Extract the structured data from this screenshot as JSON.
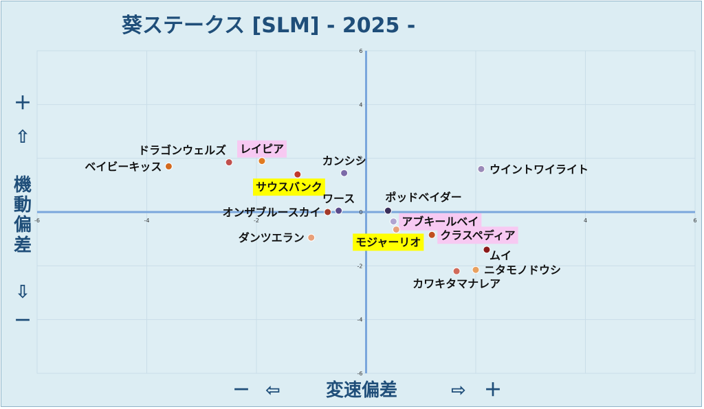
{
  "title": "葵ステークス [SLM]  - 2025 -",
  "y_axis_title": [
    "機",
    "動",
    "偏",
    "差"
  ],
  "y_plus": "＋",
  "y_up_arrow": "⇧",
  "y_down_arrow": "⇩",
  "y_minus": "－",
  "x_minus": "－",
  "x_left_arrow": "⇦",
  "x_axis_title": "変速偏差",
  "x_right_arrow": "⇨",
  "x_plus": "＋",
  "colors": {
    "background": "#dcedf3",
    "axis": "#7aa6dc",
    "title": "#1f4e79",
    "highlight_pink": "#f7c9f2",
    "highlight_yellow": "#ffff00"
  },
  "chart_data": {
    "type": "scatter",
    "title": "葵ステークス [SLM]  - 2025 -",
    "xlabel": "変速偏差",
    "ylabel": "機動偏差",
    "xlim": [
      -6,
      6
    ],
    "ylim": [
      -6,
      6
    ],
    "x_ticks": [
      "-6",
      "-4",
      "-2",
      "0",
      "2",
      "4",
      "6"
    ],
    "y_ticks": [
      "6",
      "4",
      "2",
      "0",
      "-2",
      "-4",
      "-6"
    ],
    "grid": true,
    "points": [
      {
        "name": "ベイビーキッス",
        "x": -3.6,
        "y": 1.7,
        "color": "#d2691e",
        "highlight": "none",
        "label_side": "left"
      },
      {
        "name": "ドラゴンウェルズ",
        "x": -2.5,
        "y": 1.85,
        "color": "#c0504d",
        "highlight": "none",
        "label_side": "above-left"
      },
      {
        "name": "レイピア",
        "x": -1.9,
        "y": 1.9,
        "color": "#e07b20",
        "highlight": "pink",
        "label_side": "above"
      },
      {
        "name": "サウスバンク",
        "x": -1.25,
        "y": 1.4,
        "color": "#c0392b",
        "highlight": "yellow",
        "label_side": "below-left"
      },
      {
        "name": "カンシシ",
        "x": -0.4,
        "y": 1.45,
        "color": "#7b6aa8",
        "highlight": "none",
        "label_side": "above"
      },
      {
        "name": "ワース",
        "x": -0.5,
        "y": 0.05,
        "color": "#5a4a8a",
        "highlight": "none",
        "label_side": "above"
      },
      {
        "name": "オンザブルースカイ",
        "x": -0.7,
        "y": 0.0,
        "color": "#a33a2a",
        "highlight": "none",
        "label_side": "left"
      },
      {
        "name": "ダンツエラン",
        "x": -1.0,
        "y": -0.95,
        "color": "#e8a07a",
        "highlight": "none",
        "label_side": "left"
      },
      {
        "name": "ポッドベイダー",
        "x": 0.4,
        "y": 0.05,
        "color": "#3a2f5a",
        "highlight": "none",
        "label_side": "above-right"
      },
      {
        "name": "アブキールベイ",
        "x": 0.5,
        "y": -0.35,
        "color": "#b0a4d0",
        "highlight": "pink",
        "label_side": "right"
      },
      {
        "name": "モジャーリオ",
        "x": 0.55,
        "y": -0.65,
        "color": "#e8a07a",
        "highlight": "yellow",
        "label_side": "below-left"
      },
      {
        "name": "クラスペディア",
        "x": 1.2,
        "y": -0.85,
        "color": "#c05020",
        "highlight": "pink",
        "label_side": "right"
      },
      {
        "name": "ウイントワイライト",
        "x": 2.1,
        "y": 1.6,
        "color": "#9a8ab8",
        "highlight": "none",
        "label_side": "right"
      },
      {
        "name": "ムイ",
        "x": 2.2,
        "y": -1.4,
        "color": "#8b1a1a",
        "highlight": "none",
        "label_side": "below-right"
      },
      {
        "name": "ニタモノドウシ",
        "x": 2.0,
        "y": -2.15,
        "color": "#e8a060",
        "highlight": "none",
        "label_side": "right"
      },
      {
        "name": "カワキタマナレア",
        "x": 1.65,
        "y": -2.2,
        "color": "#d06a5a",
        "highlight": "none",
        "label_side": "below"
      }
    ]
  }
}
